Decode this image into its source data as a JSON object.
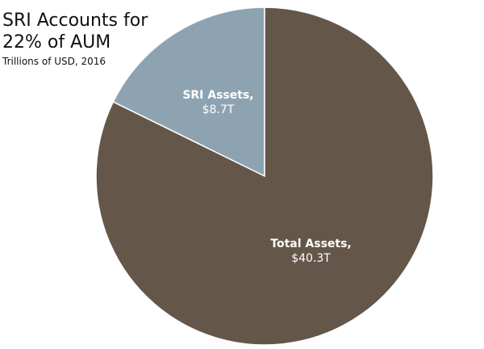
{
  "chart_data": {
    "type": "pie",
    "title": "SRI Accounts for 22% of AUM",
    "title_lines": [
      "SRI Accounts for",
      "22% of AUM"
    ],
    "subtitle": "Trillions of USD, 2016",
    "slices": [
      {
        "name": "SRI Assets,",
        "value_label": "$8.7T",
        "value": 8.7,
        "color": "#8ea3b2"
      },
      {
        "name": "Total Assets,",
        "value_label": "$40.3T",
        "value": 40.3,
        "color": "#65564a"
      }
    ],
    "start_angle_deg": 0,
    "direction": "counterclockwise",
    "slice_border_color": "#ffffff",
    "label_color": "#ffffff"
  }
}
